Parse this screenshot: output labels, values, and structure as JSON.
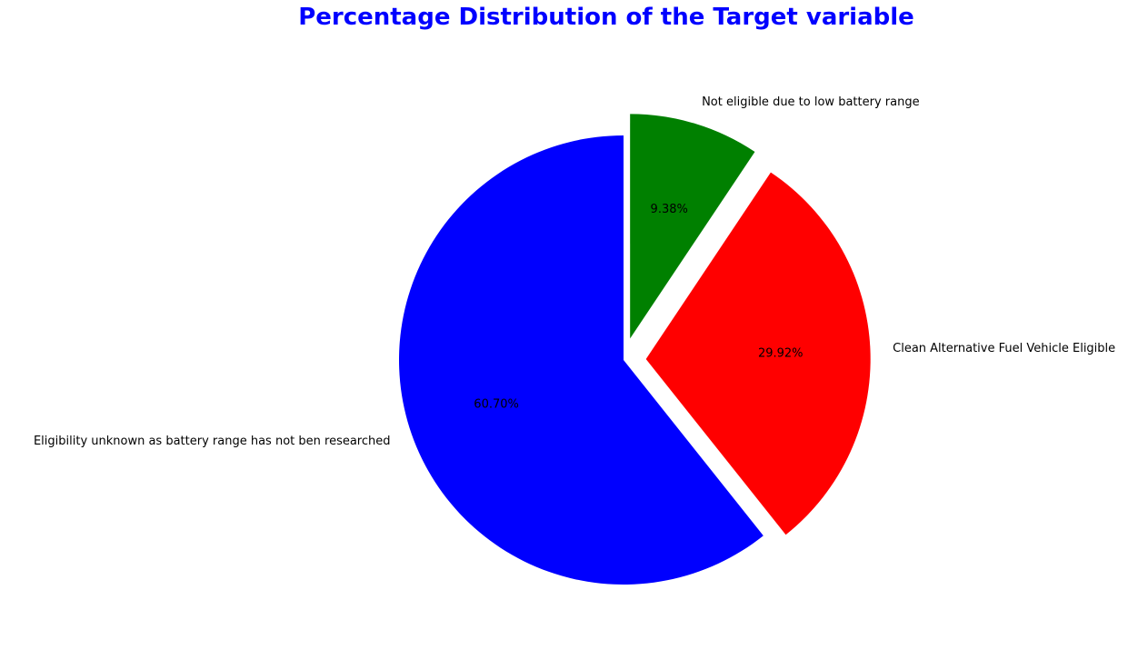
{
  "chart_data": {
    "type": "pie",
    "title": "Percentage Distribution of the Target variable",
    "title_color": "#0000ff",
    "start_angle_deg": 90,
    "direction": "counterclockwise",
    "slices": [
      {
        "label": "Eligibility unknown as battery range has not ben researched",
        "value": 60.7,
        "pct_label": "60.70%",
        "color": "#0000ff",
        "exploded": false
      },
      {
        "label": "Clean Alternative Fuel Vehicle Eligible",
        "value": 29.92,
        "pct_label": "29.92%",
        "color": "#ff0000",
        "exploded": true
      },
      {
        "label": "Not eligible due to low battery range",
        "value": 9.38,
        "pct_label": "9.38%",
        "color": "#008000",
        "exploded": true
      }
    ]
  }
}
